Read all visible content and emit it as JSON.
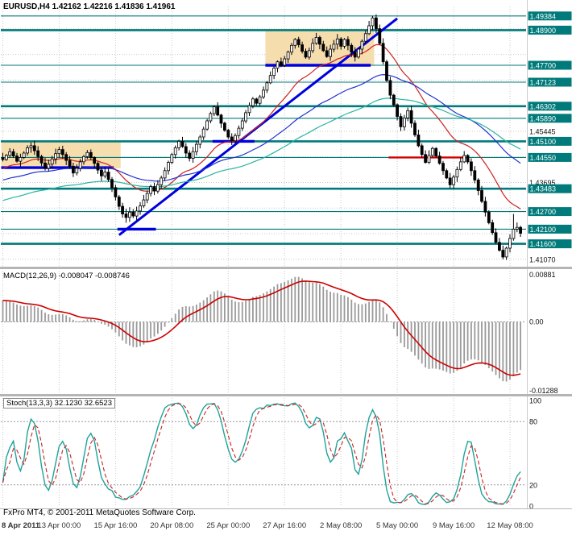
{
  "window": {
    "symbol_title": "EURUSD,H4 1.42162 1.42216 1.41836 1.41961"
  },
  "footer": {
    "copyright": "FxPro MT4, © 2001-2011 MetaQuotes Software Corp."
  },
  "panels": {
    "macd": {
      "label": "MACD(12,26,9) -0.008047 -0.008746",
      "axis_labels": [
        "0.00881",
        "0.00",
        "-0.01288"
      ],
      "range": [
        -0.01288,
        0.00881
      ],
      "params": [
        12,
        26,
        9
      ],
      "values": [
        -0.008047,
        -0.008746
      ]
    },
    "stoch": {
      "label": "Stoch(13,3,3) 32.1230 32.6523",
      "axis_labels": [
        "100",
        "80",
        "20",
        "0"
      ],
      "range": [
        0,
        100
      ],
      "dotted_levels": [
        80,
        20
      ],
      "params": [
        13,
        3,
        3
      ],
      "values": [
        32.123,
        32.6523
      ]
    }
  },
  "time_axis": {
    "labels": [
      "8 Apr 2011",
      "13 Apr 00:00",
      "15 Apr 16:00",
      "20 Apr 08:00",
      "25 Apr 00:00",
      "27 Apr 16:00",
      "2 May 08:00",
      "5 May 00:00",
      "9 May 16:00",
      "12 May 08:00"
    ],
    "bar_index": [
      0,
      16,
      32,
      48,
      64,
      80,
      96,
      112,
      128,
      144
    ]
  },
  "price_axis": {
    "boxed_levels": [
      {
        "price": 1.49384,
        "weight": "thin"
      },
      {
        "price": 1.489,
        "weight": "thick"
      },
      {
        "price": 1.477,
        "weight": "thin"
      },
      {
        "price": 1.47123,
        "weight": "thin"
      },
      {
        "price": 1.46302,
        "weight": "thick"
      },
      {
        "price": 1.4589,
        "weight": "thin"
      },
      {
        "price": 1.451,
        "weight": "thick"
      },
      {
        "price": 1.4455,
        "weight": "thin"
      },
      {
        "price": 1.43483,
        "weight": "thick"
      },
      {
        "price": 1.427,
        "weight": "thin"
      },
      {
        "price": 1.421,
        "weight": "thin"
      },
      {
        "price": 1.416,
        "weight": "thick"
      }
    ],
    "plain_labels": [
      1.45445,
      1.43695,
      1.4107
    ],
    "grid_base": 1.4107,
    "grid_step": 0.00875,
    "price_range": [
      1.409,
      1.496
    ]
  },
  "chart_data": {
    "type": "candlestick",
    "symbol": "EURUSD",
    "timeframe": "H4",
    "title": "EURUSD,H4",
    "last_ohlc": {
      "open": 1.42162,
      "high": 1.42216,
      "low": 1.41836,
      "close": 1.41961
    },
    "closes": [
      1.4448,
      1.4462,
      1.4475,
      1.446,
      1.4442,
      1.4455,
      1.447,
      1.4488,
      1.4495,
      1.4478,
      1.4458,
      1.4436,
      1.4418,
      1.4432,
      1.445,
      1.4468,
      1.4482,
      1.4465,
      1.4445,
      1.4425,
      1.4402,
      1.4418,
      1.444,
      1.4458,
      1.4472,
      1.4455,
      1.4435,
      1.4412,
      1.4392,
      1.4405,
      1.438,
      1.4352,
      1.432,
      1.4288,
      1.4262,
      1.425,
      1.4268,
      1.4255,
      1.4272,
      1.429,
      1.431,
      1.4332,
      1.4355,
      1.434,
      1.4362,
      1.4385,
      1.441,
      1.4438,
      1.4465,
      1.4488,
      1.451,
      1.4492,
      1.447,
      1.4452,
      1.4475,
      1.45,
      1.4525,
      1.4552,
      1.458,
      1.4605,
      1.4628,
      1.46,
      1.4572,
      1.4548,
      1.4525,
      1.4512,
      1.453,
      1.4555,
      1.458,
      1.4608,
      1.4632,
      1.4655,
      1.464,
      1.4662,
      1.4685,
      1.471,
      1.4735,
      1.476,
      1.4782,
      1.477,
      1.4792,
      1.4815,
      1.4838,
      1.4858,
      1.484,
      1.4818,
      1.4798,
      1.482,
      1.4845,
      1.4865,
      1.4842,
      1.482,
      1.48,
      1.4825,
      1.4842,
      1.486,
      1.4835,
      1.4858,
      1.4838,
      1.4815,
      1.4798,
      1.4825,
      1.4852,
      1.4878,
      1.4905,
      1.4932,
      1.4895,
      1.4845,
      1.4782,
      1.4718,
      1.4668,
      1.4635,
      1.4595,
      1.456,
      1.459,
      1.4615,
      1.4572,
      1.4532,
      1.4495,
      1.4465,
      1.4438,
      1.4462,
      1.4486,
      1.446,
      1.4435,
      1.441,
      1.4385,
      1.4362,
      1.4388,
      1.4414,
      1.444,
      1.4462,
      1.444,
      1.441,
      1.4378,
      1.4342,
      1.4305,
      1.4268,
      1.4232,
      1.4198,
      1.4165,
      1.4138,
      1.4115,
      1.4145,
      1.4178,
      1.421,
      1.4216,
      1.4196
    ],
    "wick_overrides": {
      "35": {
        "low": 1.4232
      },
      "105": {
        "high": 1.49384
      },
      "142": {
        "low": 1.4107
      },
      "145": {
        "high": 1.4262
      }
    },
    "zones": [
      {
        "from_bar": 0,
        "to_bar": 33,
        "top": 1.4508,
        "bottom": 1.4418
      },
      {
        "from_bar": 75,
        "to_bar": 105,
        "top": 1.4892,
        "bottom": 1.4768
      }
    ],
    "segments": [
      {
        "from_bar": 0,
        "to_bar": 31,
        "price": 1.442,
        "color_key": "blue"
      },
      {
        "from_bar": 33,
        "to_bar": 43,
        "price": 1.421,
        "color_key": "blue"
      },
      {
        "from_bar": 60,
        "to_bar": 71,
        "price": 1.451,
        "color_key": "blue"
      },
      {
        "from_bar": 75,
        "to_bar": 104,
        "price": 1.477,
        "color_key": "blue"
      },
      {
        "from_bar": 110,
        "to_bar": 131,
        "price": 1.4455,
        "color_key": "red"
      }
    ],
    "trendline": {
      "from_bar": 33,
      "from_price": 1.419,
      "to_bar": 112,
      "to_price": 1.493
    },
    "moving_averages": [
      {
        "period": 21,
        "seed_offset": -0.003,
        "color_key": "ma_red"
      },
      {
        "period": 55,
        "seed_offset": -0.007,
        "color_key": "ma_blue"
      },
      {
        "period": 89,
        "seed_offset": -0.014,
        "color_key": "ma_teal"
      }
    ],
    "macd_seed": [
      -0.0005,
      -0.0045
    ]
  },
  "colors": {
    "background": "#ffffff",
    "grid": "#c9c9c9",
    "candle_up_fill": "#ffffff",
    "candle_down_fill": "#000000",
    "candle_border": "#000000",
    "level_teal": "#007a7a",
    "label_box": "#007a7a",
    "label_text": "#ffffff",
    "blue": "#0000dd",
    "red": "#d40000",
    "ma_red": "#cc2222",
    "ma_blue": "#2233cc",
    "ma_teal": "#2ab5a0",
    "zone_fill": "#f6ddae",
    "macd_hist": "#9a9a9a",
    "macd_signal": "#cc0000",
    "stoch_k": "#1fa39b",
    "stoch_d": "#cc2222",
    "splitter": "#b5b5b5"
  }
}
